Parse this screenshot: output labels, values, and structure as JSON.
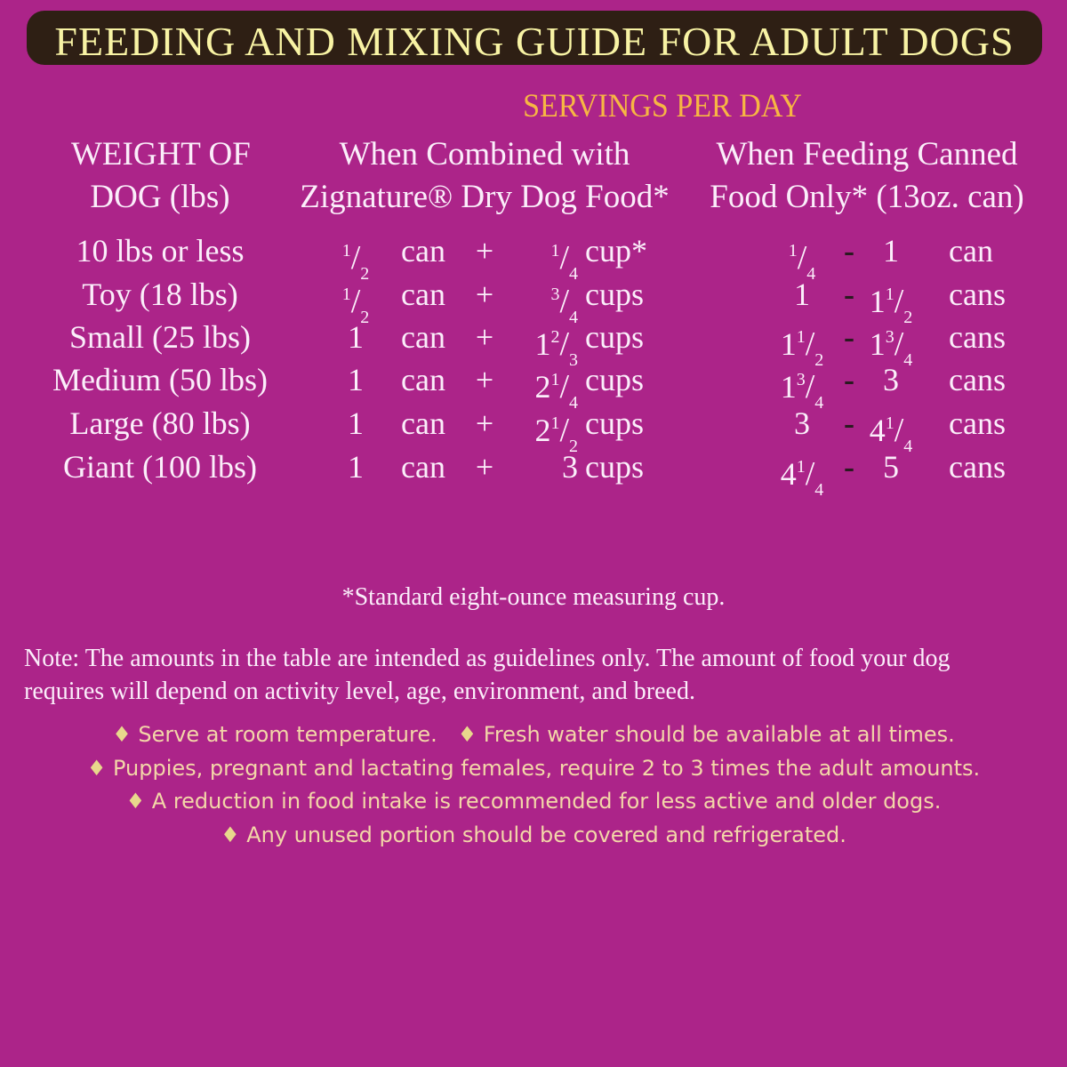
{
  "title": "FEEDING AND MIXING GUIDE FOR ADULT DOGS",
  "servings_header": "SERVINGS PER DAY",
  "headers": {
    "weight": [
      "WEIGHT OF",
      "DOG (lbs)"
    ],
    "combined": [
      "When Combined with",
      "Zignature® Dry Dog Food*"
    ],
    "canned": [
      "When Feeding Canned",
      "Food Only* (13oz. can)"
    ]
  },
  "rows": [
    {
      "weight": "10 lbs or less",
      "can_qty": {
        "w": "",
        "n": "1",
        "d": "2"
      },
      "can_unit": "can",
      "plus": "+",
      "cup_qty": {
        "w": "",
        "n": "1",
        "d": "4"
      },
      "cup_unit": "cup*",
      "low": {
        "w": "",
        "n": "1",
        "d": "4"
      },
      "dash": "-",
      "high": {
        "w": "1",
        "n": "",
        "d": ""
      },
      "canned_unit": "can"
    },
    {
      "weight": "Toy (18 lbs)",
      "can_qty": {
        "w": "",
        "n": "1",
        "d": "2"
      },
      "can_unit": "can",
      "plus": "+",
      "cup_qty": {
        "w": "",
        "n": "3",
        "d": "4"
      },
      "cup_unit": "cups",
      "low": {
        "w": "1",
        "n": "",
        "d": ""
      },
      "dash": "-",
      "high": {
        "w": "1",
        "n": "1",
        "d": "2"
      },
      "canned_unit": "cans"
    },
    {
      "weight": "Small (25 lbs)",
      "can_qty": {
        "w": "1",
        "n": "",
        "d": ""
      },
      "can_unit": "can",
      "plus": "+",
      "cup_qty": {
        "w": "1",
        "n": "2",
        "d": "3"
      },
      "cup_unit": "cups",
      "low": {
        "w": "1",
        "n": "1",
        "d": "2"
      },
      "dash": "-",
      "high": {
        "w": "1",
        "n": "3",
        "d": "4"
      },
      "canned_unit": "cans"
    },
    {
      "weight": "Medium (50 lbs)",
      "can_qty": {
        "w": "1",
        "n": "",
        "d": ""
      },
      "can_unit": "can",
      "plus": "+",
      "cup_qty": {
        "w": "2",
        "n": "1",
        "d": "4"
      },
      "cup_unit": "cups",
      "low": {
        "w": "1",
        "n": "3",
        "d": "4"
      },
      "dash": "-",
      "high": {
        "w": "3",
        "n": "",
        "d": ""
      },
      "canned_unit": "cans"
    },
    {
      "weight": "Large (80 lbs)",
      "can_qty": {
        "w": "1",
        "n": "",
        "d": ""
      },
      "can_unit": "can",
      "plus": "+",
      "cup_qty": {
        "w": "2",
        "n": "1",
        "d": "2"
      },
      "cup_unit": "cups",
      "low": {
        "w": "3",
        "n": "",
        "d": ""
      },
      "dash": "-",
      "high": {
        "w": "4",
        "n": "1",
        "d": "4"
      },
      "canned_unit": "cans"
    },
    {
      "weight": "Giant (100 lbs)",
      "can_qty": {
        "w": "1",
        "n": "",
        "d": ""
      },
      "can_unit": "can",
      "plus": "+",
      "cup_qty": {
        "w": "3",
        "n": "",
        "d": ""
      },
      "cup_unit": "cups",
      "low": {
        "w": "4",
        "n": "1",
        "d": "4"
      },
      "dash": "-",
      "high": {
        "w": "5",
        "n": "",
        "d": ""
      },
      "canned_unit": "cans"
    }
  ],
  "footnote": "*Standard eight-ounce measuring cup.",
  "note": [
    "Note: The amounts in the table are intended as guidelines only. The amount of food your dog",
    "requires will depend on activity level, age, environment, and breed."
  ],
  "bullet_symbol": "♦",
  "bullets": [
    [
      "Serve at room temperature.",
      "Fresh water should be available at all times."
    ],
    [
      "Puppies, pregnant and lactating females, require 2 to 3 times the adult amounts."
    ],
    [
      "A reduction in food intake is recommended for less active and older dogs."
    ],
    [
      "Any unused portion should be covered and refrigerated."
    ]
  ],
  "colors": {
    "background": "#ac2489",
    "title_bar": "#2e1f14",
    "title_text": "#f8f3a4",
    "servings_text": "#f7b643",
    "bullet_text": "#f3d6a8"
  }
}
